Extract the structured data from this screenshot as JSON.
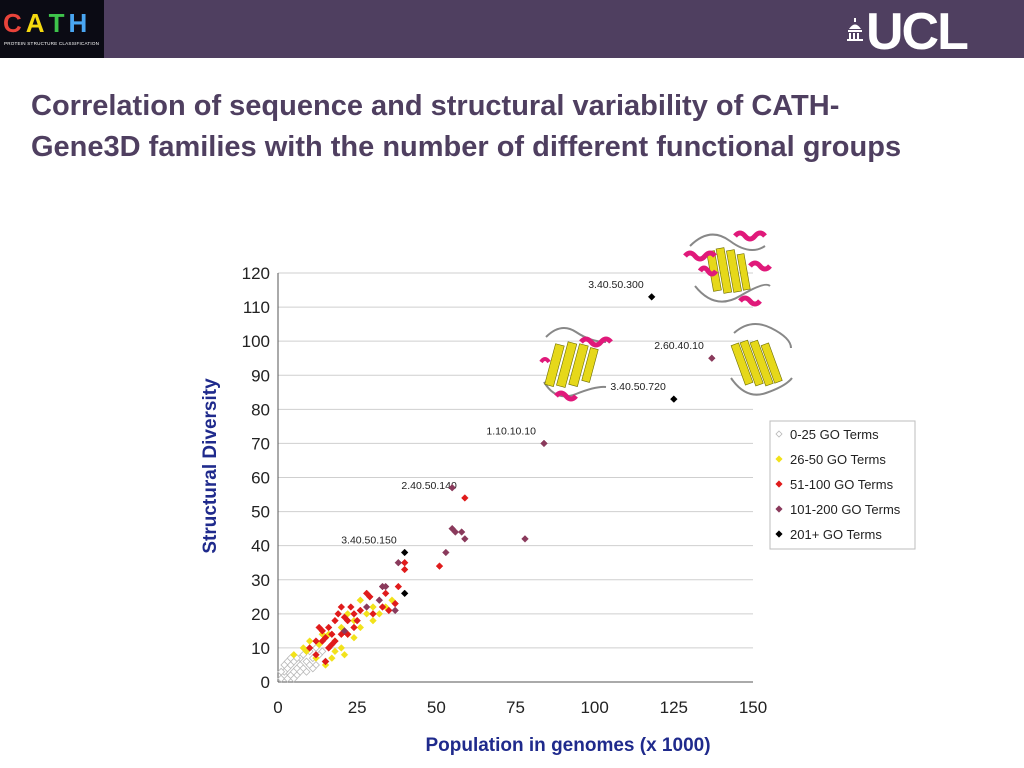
{
  "header": {
    "logo_letters": [
      "C",
      "A",
      "T",
      "H"
    ],
    "logo_letter_colors": [
      "#e8433a",
      "#f5d90f",
      "#3ec44b",
      "#49a6f2"
    ],
    "logo_subtitle": "PROTEIN STRUCTURE CLASSIFICATION",
    "university_logo": "UCL",
    "bar_color": "#4f3f60"
  },
  "title": "Correlation of sequence and structural variability of CATH-Gene3D families with the number of different functional groups",
  "chart_data": {
    "type": "scatter",
    "title": "",
    "xlabel": "Population in genomes (x 1000)",
    "ylabel": "Structural Diversity",
    "xlim": [
      0,
      150
    ],
    "ylim": [
      0,
      120
    ],
    "xticks": [
      0,
      25,
      50,
      75,
      100,
      125,
      150
    ],
    "yticks": [
      0,
      10,
      20,
      30,
      40,
      50,
      60,
      70,
      80,
      90,
      100,
      110,
      120
    ],
    "grid": "horizontal",
    "legend_position": "right",
    "label_color": "#1f2a8c",
    "series": [
      {
        "name": "0-25 GO Terms",
        "color": "#d8d8d8",
        "hollow": true,
        "points": [
          [
            1,
            1
          ],
          [
            2,
            2
          ],
          [
            3,
            1
          ],
          [
            2,
            3
          ],
          [
            4,
            2
          ],
          [
            3,
            4
          ],
          [
            5,
            3
          ],
          [
            4,
            5
          ],
          [
            6,
            4
          ],
          [
            5,
            6
          ],
          [
            6,
            2
          ],
          [
            7,
            5
          ],
          [
            8,
            4
          ],
          [
            7,
            7
          ],
          [
            9,
            6
          ],
          [
            8,
            8
          ],
          [
            10,
            5
          ],
          [
            10,
            9
          ],
          [
            11,
            7
          ],
          [
            12,
            10
          ],
          [
            9,
            3
          ],
          [
            6,
            7
          ],
          [
            13,
            8
          ],
          [
            5,
            1
          ],
          [
            3,
            6
          ],
          [
            15,
            6
          ],
          [
            12,
            5
          ],
          [
            2,
            5
          ],
          [
            7,
            3
          ],
          [
            4,
            7
          ],
          [
            1,
            3
          ],
          [
            14,
            9
          ],
          [
            11,
            4
          ]
        ]
      },
      {
        "name": "26-50 GO Terms",
        "color": "#f2e21a",
        "points": [
          [
            5,
            8
          ],
          [
            8,
            10
          ],
          [
            10,
            12
          ],
          [
            13,
            11
          ],
          [
            16,
            14
          ],
          [
            18,
            12
          ],
          [
            20,
            16
          ],
          [
            22,
            14
          ],
          [
            24,
            18
          ],
          [
            26,
            16
          ],
          [
            28,
            20
          ],
          [
            30,
            22
          ],
          [
            32,
            20
          ],
          [
            36,
            24
          ],
          [
            26,
            24
          ],
          [
            18,
            9
          ],
          [
            15,
            5
          ],
          [
            20,
            10
          ],
          [
            24,
            13
          ],
          [
            12,
            7
          ],
          [
            14,
            14
          ],
          [
            22,
            20
          ],
          [
            30,
            18
          ],
          [
            34,
            22
          ],
          [
            9,
            9
          ],
          [
            17,
            7
          ],
          [
            21,
            8
          ]
        ]
      },
      {
        "name": "51-100 GO Terms",
        "color": "#e01b1b",
        "points": [
          [
            10,
            10
          ],
          [
            12,
            12
          ],
          [
            13,
            16
          ],
          [
            14,
            15
          ],
          [
            15,
            13
          ],
          [
            16,
            16
          ],
          [
            17,
            14
          ],
          [
            18,
            18
          ],
          [
            19,
            20
          ],
          [
            20,
            22
          ],
          [
            21,
            19
          ],
          [
            22,
            18
          ],
          [
            23,
            22
          ],
          [
            24,
            20
          ],
          [
            25,
            18
          ],
          [
            28,
            26
          ],
          [
            29,
            25
          ],
          [
            30,
            20
          ],
          [
            33,
            22
          ],
          [
            35,
            21
          ],
          [
            37,
            23
          ],
          [
            40,
            35
          ],
          [
            40,
            33
          ],
          [
            51,
            34
          ],
          [
            59,
            54
          ],
          [
            16,
            10
          ],
          [
            18,
            12
          ],
          [
            22,
            14
          ],
          [
            26,
            21
          ],
          [
            34,
            26
          ],
          [
            12,
            8
          ],
          [
            14,
            12
          ],
          [
            20,
            14
          ],
          [
            24,
            16
          ],
          [
            38,
            28
          ],
          [
            15,
            6
          ],
          [
            17,
            11
          ]
        ]
      },
      {
        "name": "101-200 GO Terms",
        "color": "#8a3a5c",
        "points": [
          [
            21,
            15
          ],
          [
            28,
            22
          ],
          [
            32,
            24
          ],
          [
            33,
            28
          ],
          [
            34,
            28
          ],
          [
            37,
            21
          ],
          [
            38,
            35
          ],
          [
            53,
            38
          ],
          [
            55,
            45
          ],
          [
            56,
            44
          ],
          [
            58,
            44
          ],
          [
            59,
            42
          ],
          [
            78,
            42
          ],
          [
            55,
            57
          ],
          [
            84,
            70
          ],
          [
            137,
            95
          ]
        ]
      },
      {
        "name": "201+ GO Terms",
        "color": "#000000",
        "points": [
          [
            40,
            38
          ],
          [
            40,
            26
          ],
          [
            118,
            113
          ],
          [
            125,
            83
          ]
        ]
      }
    ],
    "annotations": [
      {
        "text": "3.40.50.300",
        "x": 118,
        "y": 113
      },
      {
        "text": "2.60.40.10",
        "x": 137,
        "y": 95
      },
      {
        "text": "3.40.50.720",
        "x": 125,
        "y": 83
      },
      {
        "text": "1.10.10.10",
        "x": 84,
        "y": 70
      },
      {
        "text": "2.40.50.140",
        "x": 59,
        "y": 54
      },
      {
        "text": "3.40.50.150",
        "x": 40,
        "y": 38
      }
    ]
  }
}
